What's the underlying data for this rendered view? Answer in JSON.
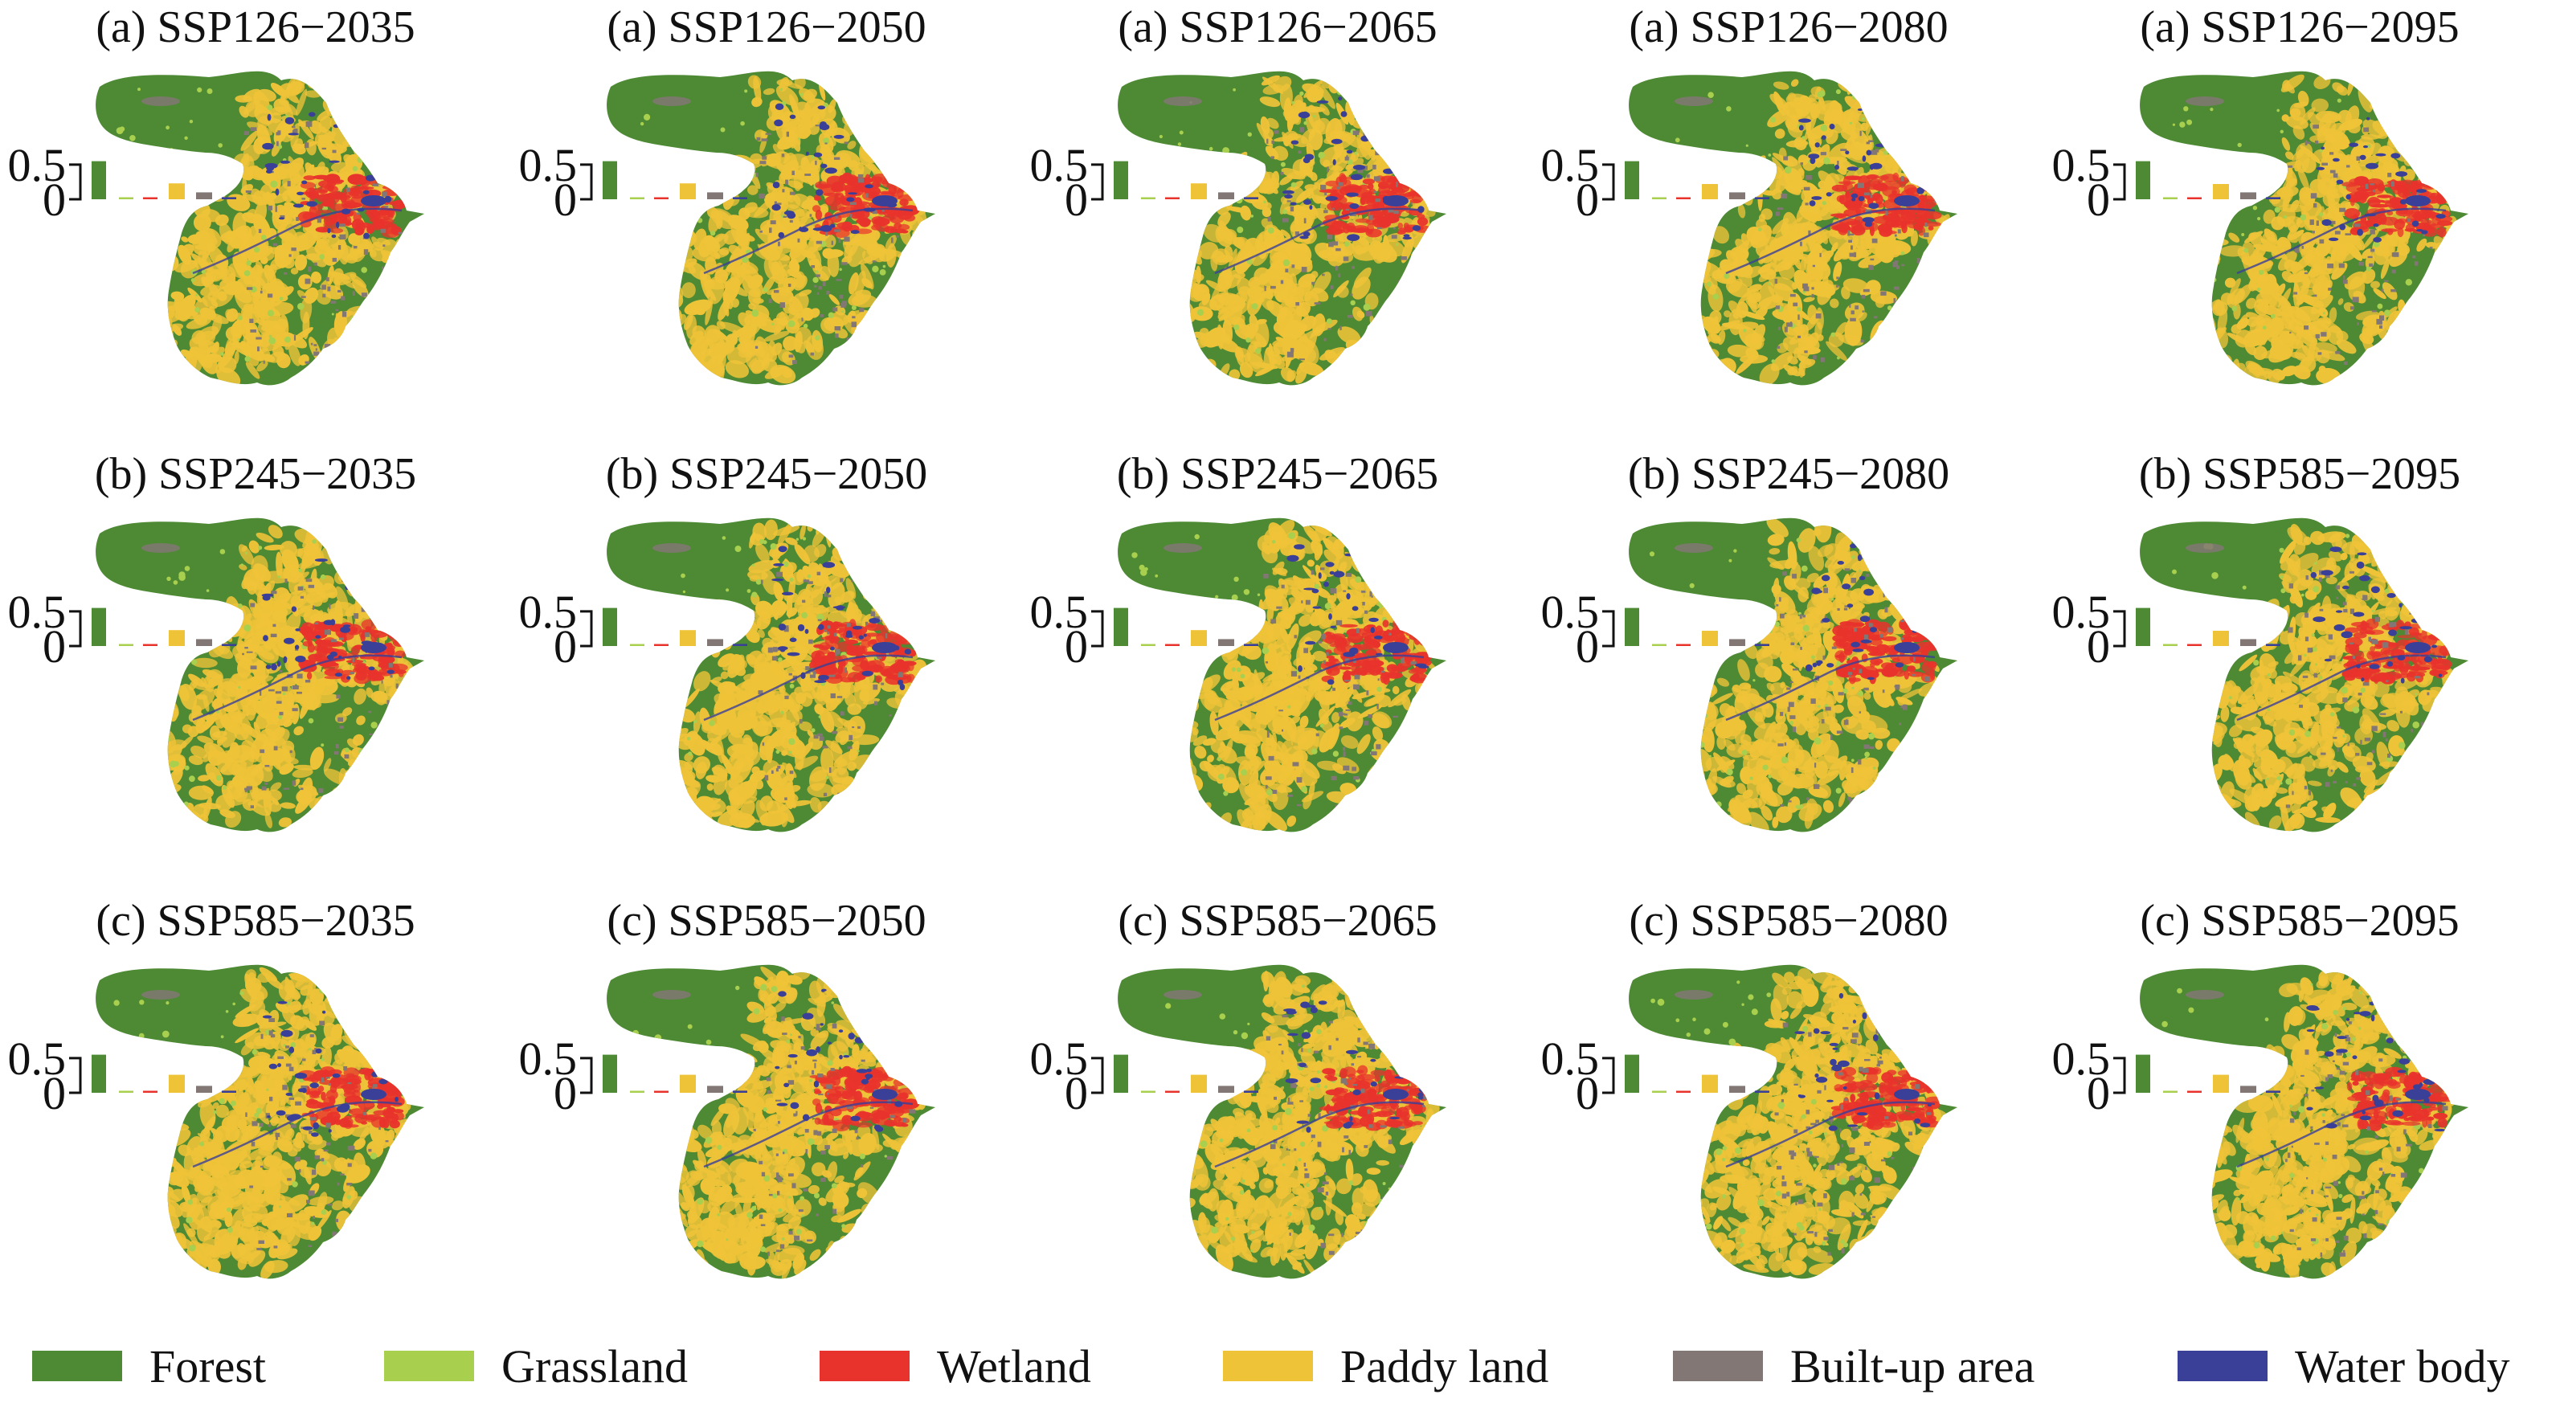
{
  "colors": {
    "Forest": "#4d8a33",
    "Grassland": "#a8cf4e",
    "Wetland": "#e8332c",
    "Paddy land": "#efc338",
    "Built-up area": "#827774",
    "Water body": "#3a3f98"
  },
  "axis": {
    "y_ticks": [
      "0.5",
      "0"
    ],
    "ylim": [
      0,
      0.65
    ]
  },
  "panels": [
    {
      "title": "(a) SSP126−2035",
      "bars": [
        0.55,
        0.01,
        0.02,
        0.23,
        0.1,
        0.03
      ]
    },
    {
      "title": "(a) SSP126−2050",
      "bars": [
        0.55,
        0.01,
        0.02,
        0.23,
        0.1,
        0.03
      ]
    },
    {
      "title": "(a) SSP126−2065",
      "bars": [
        0.55,
        0.01,
        0.02,
        0.23,
        0.1,
        0.03
      ]
    },
    {
      "title": "(a) SSP126−2080",
      "bars": [
        0.55,
        0.01,
        0.02,
        0.22,
        0.1,
        0.03
      ]
    },
    {
      "title": "(a) SSP126−2095",
      "bars": [
        0.55,
        0.01,
        0.02,
        0.22,
        0.1,
        0.03
      ]
    },
    {
      "title": "(b) SSP245−2035",
      "bars": [
        0.55,
        0.01,
        0.02,
        0.23,
        0.1,
        0.03
      ]
    },
    {
      "title": "(b) SSP245−2050",
      "bars": [
        0.55,
        0.01,
        0.02,
        0.23,
        0.1,
        0.03
      ]
    },
    {
      "title": "(b) SSP245−2065",
      "bars": [
        0.55,
        0.01,
        0.02,
        0.23,
        0.1,
        0.03
      ]
    },
    {
      "title": "(b) SSP245−2080",
      "bars": [
        0.55,
        0.01,
        0.02,
        0.22,
        0.1,
        0.03
      ]
    },
    {
      "title": "(b) SSP585−2095",
      "bars": [
        0.55,
        0.01,
        0.02,
        0.22,
        0.1,
        0.03
      ]
    },
    {
      "title": "(c) SSP585−2035",
      "bars": [
        0.55,
        0.01,
        0.02,
        0.26,
        0.1,
        0.03
      ]
    },
    {
      "title": "(c) SSP585−2050",
      "bars": [
        0.55,
        0.01,
        0.02,
        0.26,
        0.1,
        0.03
      ]
    },
    {
      "title": "(c) SSP585−2065",
      "bars": [
        0.55,
        0.01,
        0.02,
        0.26,
        0.1,
        0.03
      ]
    },
    {
      "title": "(c) SSP585−2080",
      "bars": [
        0.55,
        0.01,
        0.02,
        0.26,
        0.1,
        0.03
      ]
    },
    {
      "title": "(c) SSP585−2095",
      "bars": [
        0.55,
        0.01,
        0.02,
        0.26,
        0.1,
        0.03
      ]
    }
  ],
  "legend": [
    {
      "label": "Forest",
      "color": "#4d8a33"
    },
    {
      "label": "Grassland",
      "color": "#a8cf4e"
    },
    {
      "label": "Wetland",
      "color": "#e8332c"
    },
    {
      "label": "Paddy land",
      "color": "#efc338"
    },
    {
      "label": "Built-up area",
      "color": "#827774"
    },
    {
      "label": "Water body",
      "color": "#3a3f98"
    }
  ]
}
